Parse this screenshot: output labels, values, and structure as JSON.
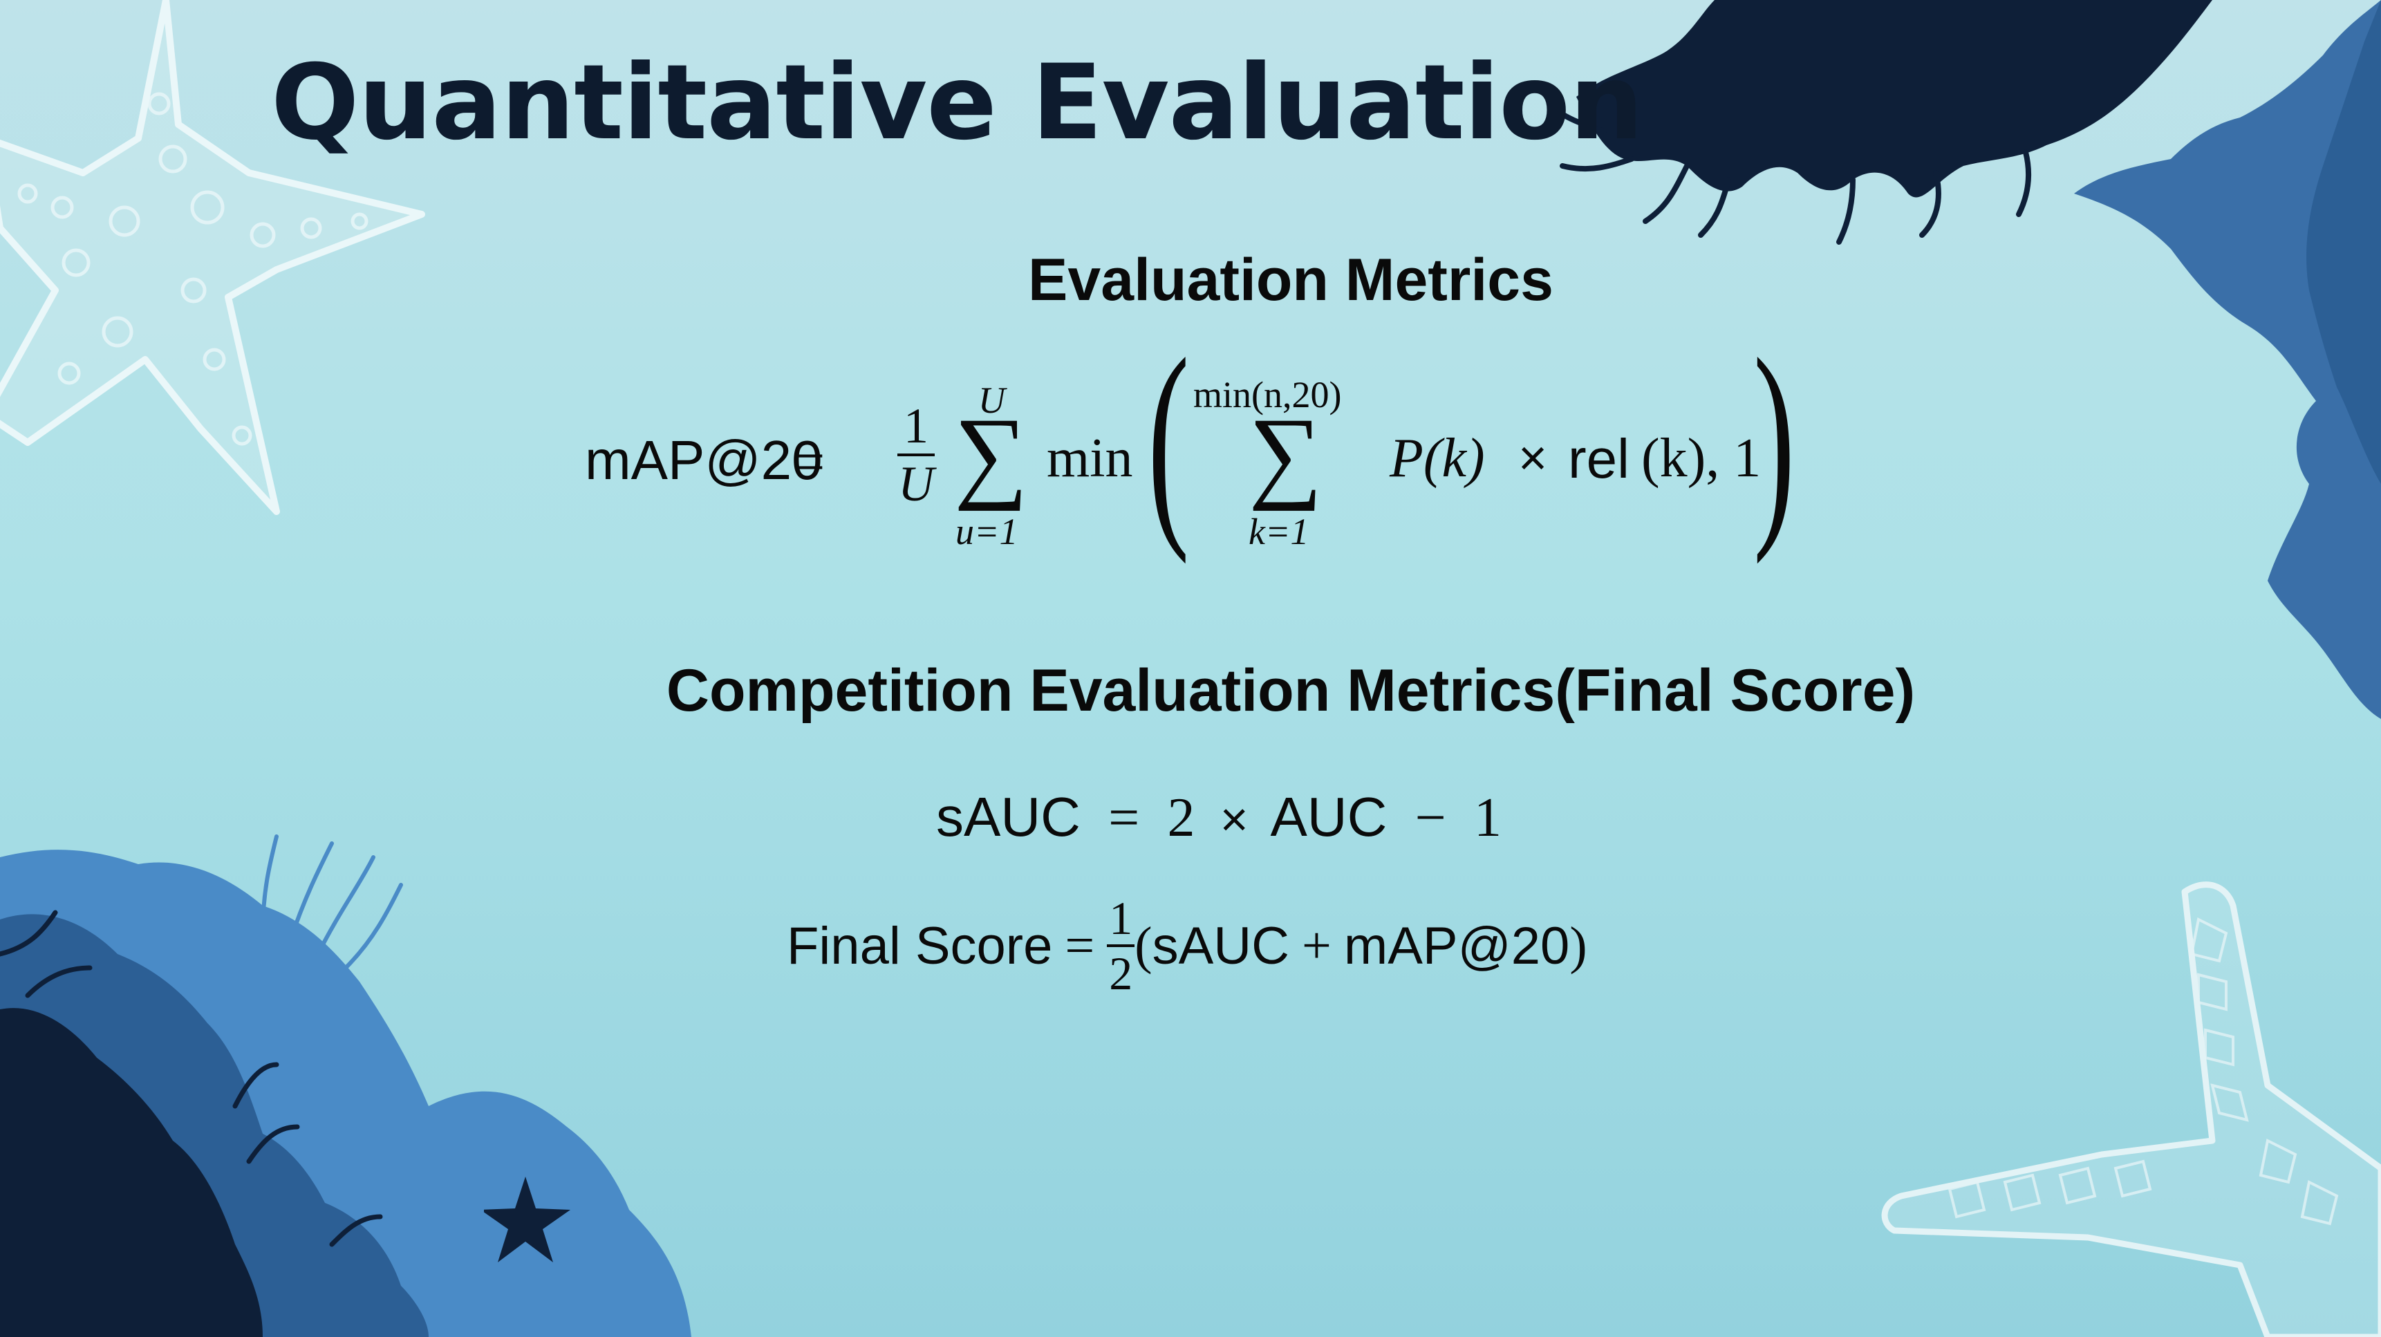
{
  "title": "Quantitative Evaluation",
  "sections": {
    "evaluation_metrics": {
      "heading": "Evaluation Metrics",
      "formula": {
        "lhs": "mAP@20",
        "equals": "=",
        "frac_num": "1",
        "frac_den": "U",
        "sum_upper": "U",
        "sum_lower": "u=1",
        "sigma": "∑",
        "min_fn": "min",
        "inner_sum_upper": "min(n,20)",
        "inner_sum_lower": "k=1",
        "term_p": "P(k)",
        "times": "×",
        "term_rel": "rel",
        "term_rel_arg": "(k), 1"
      }
    },
    "competition_metrics": {
      "heading": "Competition Evaluation Metrics(Final Score)",
      "sauc_formula": {
        "lhs": "sAUC",
        "equals": "=",
        "coef": "2",
        "times": "×",
        "auc": "AUC",
        "minus": "−",
        "one": "1"
      },
      "final_formula": {
        "lhs": "Final Score",
        "equals": "=",
        "frac_num": "1",
        "frac_den": "2",
        "open": "(",
        "sauc": "sAUC",
        "plus": "+",
        "map": "mAP@20",
        "close": ")"
      }
    }
  },
  "colors": {
    "background_top": "#bfe3ea",
    "background_bottom": "#93d2de",
    "title": "#0d1b2e",
    "coral_dark": "#0e1f38",
    "coral_mid": "#2c5f95",
    "coral_light": "#4a8bc7",
    "starfish_outline": "#e3f3f6"
  },
  "decorations": [
    "starfish-outline-top-left",
    "coral-top-right",
    "coral-right-edge",
    "coral-bottom-left",
    "starfish-silhouette",
    "starfish-outline-bottom-right"
  ]
}
